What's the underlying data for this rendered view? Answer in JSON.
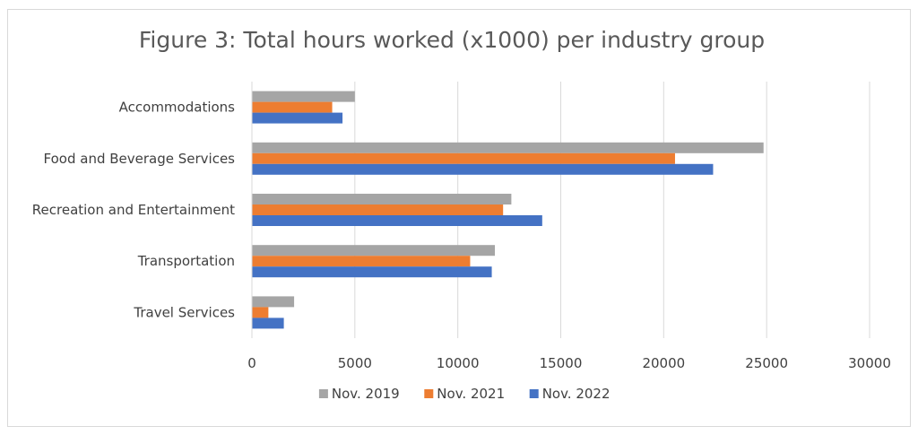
{
  "chart_data": {
    "type": "bar",
    "orientation": "horizontal",
    "title": "Figure 3: Total hours worked (x1000) per industry group",
    "xlabel": "",
    "ylabel": "",
    "categories": [
      "Accommodations",
      "Food and Beverage Services",
      "Recreation and Entertainment",
      "Transportation",
      "Travel Services"
    ],
    "series": [
      {
        "name": "Nov. 2019",
        "color": "#a5a5a5",
        "values": [
          5000,
          24850,
          12600,
          11800,
          2050
        ]
      },
      {
        "name": "Nov. 2021",
        "color": "#ed7d31",
        "values": [
          3900,
          20550,
          12200,
          10600,
          800
        ]
      },
      {
        "name": "Nov. 2022",
        "color": "#4472c4",
        "values": [
          4400,
          22400,
          14100,
          11650,
          1550
        ]
      }
    ],
    "xlim": [
      0,
      30000
    ],
    "xticks": [
      0,
      5000,
      10000,
      15000,
      20000,
      25000,
      30000
    ],
    "grid": true,
    "legend_position": "bottom"
  }
}
